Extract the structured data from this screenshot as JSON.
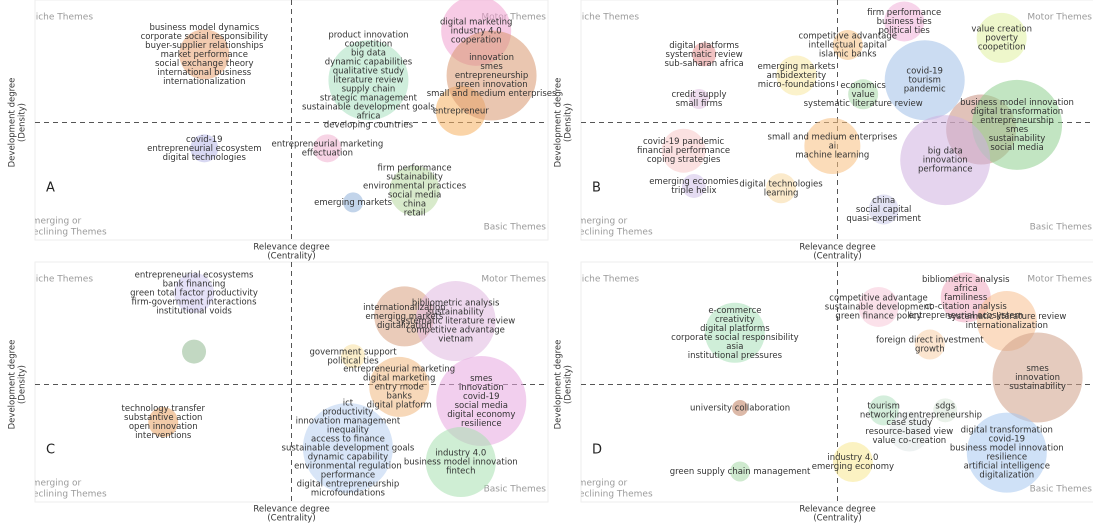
{
  "chart_data": [
    {
      "type": "bubble",
      "panel": "A",
      "xlim": [
        0,
        10
      ],
      "ylim": [
        0,
        10
      ],
      "x_label": [
        "Relevance degree",
        "(Centrality)"
      ],
      "y_label": [
        "Development degree",
        "(Density)"
      ],
      "quadrant_labels": {
        "top_left": "Niche Themes",
        "top_right": "Motor Themes",
        "bottom_left": [
          "Emerging or",
          "Declining Themes"
        ],
        "bottom_right": "Basic Themes"
      },
      "clusters": [
        {
          "x": 3.3,
          "y": 7.9,
          "size": 25,
          "color": "#e8a070",
          "labels": [
            "business model dynamics",
            "corporate social responsibility",
            "buyer-supplier relationships",
            "market performance",
            "social exchange theory",
            "international business",
            "internationalization"
          ]
        },
        {
          "x": 3.3,
          "y": 3.9,
          "size": 14,
          "color": "#b8b8e8",
          "labels": [
            "covid-19",
            "entrepreneurial ecosystem",
            "digital technologies"
          ]
        },
        {
          "x": 6.5,
          "y": 6.8,
          "size": 40,
          "color": "#a8e0c0",
          "labels": [
            "product innovation",
            "coopetition",
            "big data",
            "dynamic capabilities",
            "qualitative study",
            "literature review",
            "supply chain",
            "strategic management",
            "sustainable development goals",
            "africa",
            "developing countries"
          ]
        },
        {
          "x": 8.6,
          "y": 8.9,
          "size": 35,
          "color": "#f0a0d0",
          "labels": [
            "digital marketing",
            "industry 4.0",
            "cooperation"
          ]
        },
        {
          "x": 8.3,
          "y": 5.5,
          "size": 25,
          "color": "#f5b060",
          "labels": [
            "entrepreneur"
          ]
        },
        {
          "x": 8.9,
          "y": 7.0,
          "size": 45,
          "color": "#d89870",
          "labels": [
            "innovation",
            "smes",
            "entrepreneurship",
            "green innovation",
            "small and medium enterprises"
          ]
        },
        {
          "x": 5.7,
          "y": 3.9,
          "size": 14,
          "color": "#f0b0d0",
          "labels": [
            "entrepreneurial marketing",
            "effectuation"
          ]
        },
        {
          "x": 7.4,
          "y": 2.1,
          "size": 25,
          "color": "#b8d8a0",
          "labels": [
            "firm performance",
            "sustainability",
            "environmental practices",
            "social media",
            "china",
            "retail"
          ]
        },
        {
          "x": 6.2,
          "y": 1.6,
          "size": 10,
          "color": "#90b0d8",
          "labels": [
            "emerging markets"
          ]
        }
      ]
    },
    {
      "type": "bubble",
      "panel": "B",
      "xlim": [
        0,
        10
      ],
      "ylim": [
        0,
        10
      ],
      "x_label": [
        "Relevance degree",
        "(Centrality)"
      ],
      "y_label": [
        "Development degree",
        "(Density)"
      ],
      "quadrant_labels": {
        "top_left": "Niche Themes",
        "top_right": "Motor Themes",
        "bottom_left": [
          "Emerging or",
          "Declining Themes"
        ],
        "bottom_right": "Basic Themes"
      },
      "clusters": [
        {
          "x": 2.4,
          "y": 7.9,
          "size": 12,
          "color": "#e89090",
          "labels": [
            "digital platforms",
            "systematic review",
            "sub-saharan africa"
          ]
        },
        {
          "x": 2.3,
          "y": 6.0,
          "size": 10,
          "color": "#e0c0e0",
          "labels": [
            "credit supply",
            "small firms"
          ]
        },
        {
          "x": 5.2,
          "y": 8.3,
          "size": 15,
          "color": "#f5c080",
          "labels": [
            "competitive advantage",
            "intellectual capital",
            "islamic banks"
          ]
        },
        {
          "x": 6.3,
          "y": 9.3,
          "size": 20,
          "color": "#f0b0d8",
          "labels": [
            "firm performance",
            "business ties",
            "political ties"
          ]
        },
        {
          "x": 8.2,
          "y": 8.6,
          "size": 25,
          "color": "#e0f0a0",
          "labels": [
            "value creation",
            "poverty",
            "coopetition"
          ]
        },
        {
          "x": 4.2,
          "y": 7.0,
          "size": 20,
          "color": "#f8e8a0",
          "labels": [
            "emerging markets",
            "ambidexterity",
            "micro-foundations"
          ]
        },
        {
          "x": 5.5,
          "y": 6.2,
          "size": 15,
          "color": "#a8d8a8",
          "labels": [
            "economics",
            "value",
            "systematic literature review"
          ]
        },
        {
          "x": 6.7,
          "y": 6.8,
          "size": 40,
          "color": "#a0c0e8",
          "labels": [
            "covid-19",
            "tourism",
            "pandemic"
          ]
        },
        {
          "x": 7.8,
          "y": 4.7,
          "size": 35,
          "color": "#c89080",
          "labels": []
        },
        {
          "x": 8.5,
          "y": 4.9,
          "size": 45,
          "color": "#90d090",
          "labels": [
            "business model innovation",
            "digital transformation",
            "entrepreneurship",
            "smes",
            "sustainability",
            "social media"
          ]
        },
        {
          "x": 7.1,
          "y": 3.4,
          "size": 45,
          "color": "#d0b0e0",
          "labels": [
            "big data",
            "innovation",
            "performance"
          ]
        },
        {
          "x": 4.9,
          "y": 4.0,
          "size": 28,
          "color": "#f8c080",
          "labels": [
            "small and medium enterprises",
            "ai",
            "machine learning"
          ]
        },
        {
          "x": 2.0,
          "y": 3.8,
          "size": 22,
          "color": "#f8c8c8",
          "labels": [
            "covid-19 pandemic",
            "financial performance",
            "coping strategies"
          ]
        },
        {
          "x": 2.2,
          "y": 2.3,
          "size": 12,
          "color": "#d0c0e8",
          "labels": [
            "emerging economies",
            "triple helix"
          ]
        },
        {
          "x": 3.9,
          "y": 2.2,
          "size": 15,
          "color": "#f8d8a0",
          "labels": [
            "digital technologies",
            "learning"
          ]
        },
        {
          "x": 5.9,
          "y": 1.3,
          "size": 15,
          "color": "#c8c8e8",
          "labels": [
            "china",
            "social capital",
            "quasi-experiment"
          ]
        }
      ]
    },
    {
      "type": "bubble",
      "panel": "C",
      "xlim": [
        0,
        10
      ],
      "ylim": [
        0,
        10
      ],
      "x_label": [
        "Relevance degree",
        "(Centrality)"
      ],
      "y_label": [
        "Development degree",
        "(Density)"
      ],
      "quadrant_labels": {
        "top_left": "Niche Themes",
        "top_right": "Motor Themes",
        "bottom_left": [
          "Emerging or",
          "Declining Themes"
        ],
        "bottom_right": "Basic Themes"
      },
      "clusters": [
        {
          "x": 3.1,
          "y": 8.9,
          "size": 20,
          "color": "#d0c8f0",
          "labels": [
            "entrepreneurial ecosystems",
            "bank financing",
            "green total factor productivity",
            "firm-government interactions",
            "institutional voids"
          ]
        },
        {
          "x": 3.1,
          "y": 6.4,
          "size": 12,
          "color": "#90b890",
          "labels": []
        },
        {
          "x": 7.2,
          "y": 7.9,
          "size": 30,
          "color": "#d8a080",
          "labels": [
            "internationalization",
            "emerging markets",
            "digitalization"
          ]
        },
        {
          "x": 8.2,
          "y": 7.7,
          "size": 40,
          "color": "#e0b8e0",
          "labels": [
            "bibliometric analysis",
            "sustainability",
            "systematic literature review",
            "competitive advantage",
            "vietnam"
          ]
        },
        {
          "x": 6.2,
          "y": 6.2,
          "size": 12,
          "color": "#f8e0a0",
          "labels": [
            "government support",
            "political ties"
          ]
        },
        {
          "x": 8.7,
          "y": 4.3,
          "size": 45,
          "color": "#e8a8e0",
          "labels": [
            "smes",
            "innovation",
            "covid-19",
            "social media",
            "digital economy",
            "resilience"
          ]
        },
        {
          "x": 7.1,
          "y": 4.9,
          "size": 30,
          "color": "#f0b880",
          "labels": [
            "entrepreneurial marketing",
            "digital marketing",
            "entry mode",
            "banks",
            "digital platform"
          ]
        },
        {
          "x": 2.5,
          "y": 3.4,
          "size": 15,
          "color": "#e8a060",
          "labels": [
            "technology transfer",
            "substantive action",
            "open innovation",
            "interventions"
          ]
        },
        {
          "x": 6.1,
          "y": 2.3,
          "size": 45,
          "color": "#b8d0f0",
          "labels": [
            "ict",
            "productivity",
            "innovation management",
            "inequality",
            "access to finance",
            "sustainable development goals",
            "dynamic capability",
            "environmental regulation",
            "performance",
            "digital entrepreneurship",
            "microfoundations"
          ]
        },
        {
          "x": 8.3,
          "y": 1.7,
          "size": 35,
          "color": "#a8e0b0",
          "labels": [
            "industry 4.0",
            "business model innovation",
            "fintech"
          ]
        }
      ]
    },
    {
      "type": "bubble",
      "panel": "D",
      "xlim": [
        0,
        10
      ],
      "ylim": [
        0,
        10
      ],
      "x_label": [
        "Relevance degree",
        "(Centrality)"
      ],
      "y_label": [
        "Development degree",
        "(Density)"
      ],
      "quadrant_labels": {
        "top_left": "Niche Themes",
        "top_right": "Motor Themes",
        "bottom_left": [
          "Emerging or",
          "Declining Themes"
        ],
        "bottom_right": "Basic Themes"
      },
      "clusters": [
        {
          "x": 3.0,
          "y": 7.2,
          "size": 30,
          "color": "#a8e0b8",
          "labels": [
            "e-commerce",
            "creativity",
            "digital platforms",
            "corporate social responsibility",
            "asia",
            "institutional pressures"
          ]
        },
        {
          "x": 7.5,
          "y": 8.7,
          "size": 25,
          "color": "#f0a8c0",
          "labels": [
            "bibliometric analysis",
            "africa",
            "familiness",
            "co-citation analysis",
            "entrepreneurial ecosystem"
          ]
        },
        {
          "x": 5.8,
          "y": 8.3,
          "size": 20,
          "color": "#f8c8d8",
          "labels": [
            "competitive advantage",
            "sustainable development",
            "green finance policy"
          ]
        },
        {
          "x": 8.3,
          "y": 7.7,
          "size": 30,
          "color": "#f8c090",
          "labels": [
            "systematic literature review",
            "internationalization"
          ]
        },
        {
          "x": 6.8,
          "y": 6.7,
          "size": 15,
          "color": "#f8d0a8",
          "labels": [
            "foreign direct investment",
            "growth"
          ]
        },
        {
          "x": 8.9,
          "y": 5.3,
          "size": 45,
          "color": "#d0a088",
          "labels": [
            "smes",
            "innovation",
            "sustainability"
          ]
        },
        {
          "x": 5.9,
          "y": 3.9,
          "size": 15,
          "color": "#b0e0c0",
          "labels": [
            "tourism",
            "networking"
          ]
        },
        {
          "x": 7.1,
          "y": 3.9,
          "size": 12,
          "color": "#d8e8d8",
          "labels": [
            "sdgs",
            "entrepreneurship"
          ]
        },
        {
          "x": 6.4,
          "y": 3.0,
          "size": 20,
          "color": "#e0e8e8",
          "labels": [
            "case study",
            "resource-based view",
            "value co-creation"
          ]
        },
        {
          "x": 5.3,
          "y": 1.7,
          "size": 20,
          "color": "#f8e890",
          "labels": [
            "industry 4.0",
            "emerging economy"
          ]
        },
        {
          "x": 8.3,
          "y": 2.1,
          "size": 40,
          "color": "#a8c8f0",
          "labels": [
            "digital transformation",
            "covid-19",
            "business model innovation",
            "resilience",
            "artificial intelligence",
            "digitalization"
          ]
        },
        {
          "x": 3.1,
          "y": 4.0,
          "size": 8,
          "color": "#c08060",
          "labels": [
            "university collaboration"
          ]
        },
        {
          "x": 3.1,
          "y": 1.3,
          "size": 10,
          "color": "#a8d8a8",
          "labels": [
            "green supply chain management"
          ]
        }
      ]
    }
  ]
}
